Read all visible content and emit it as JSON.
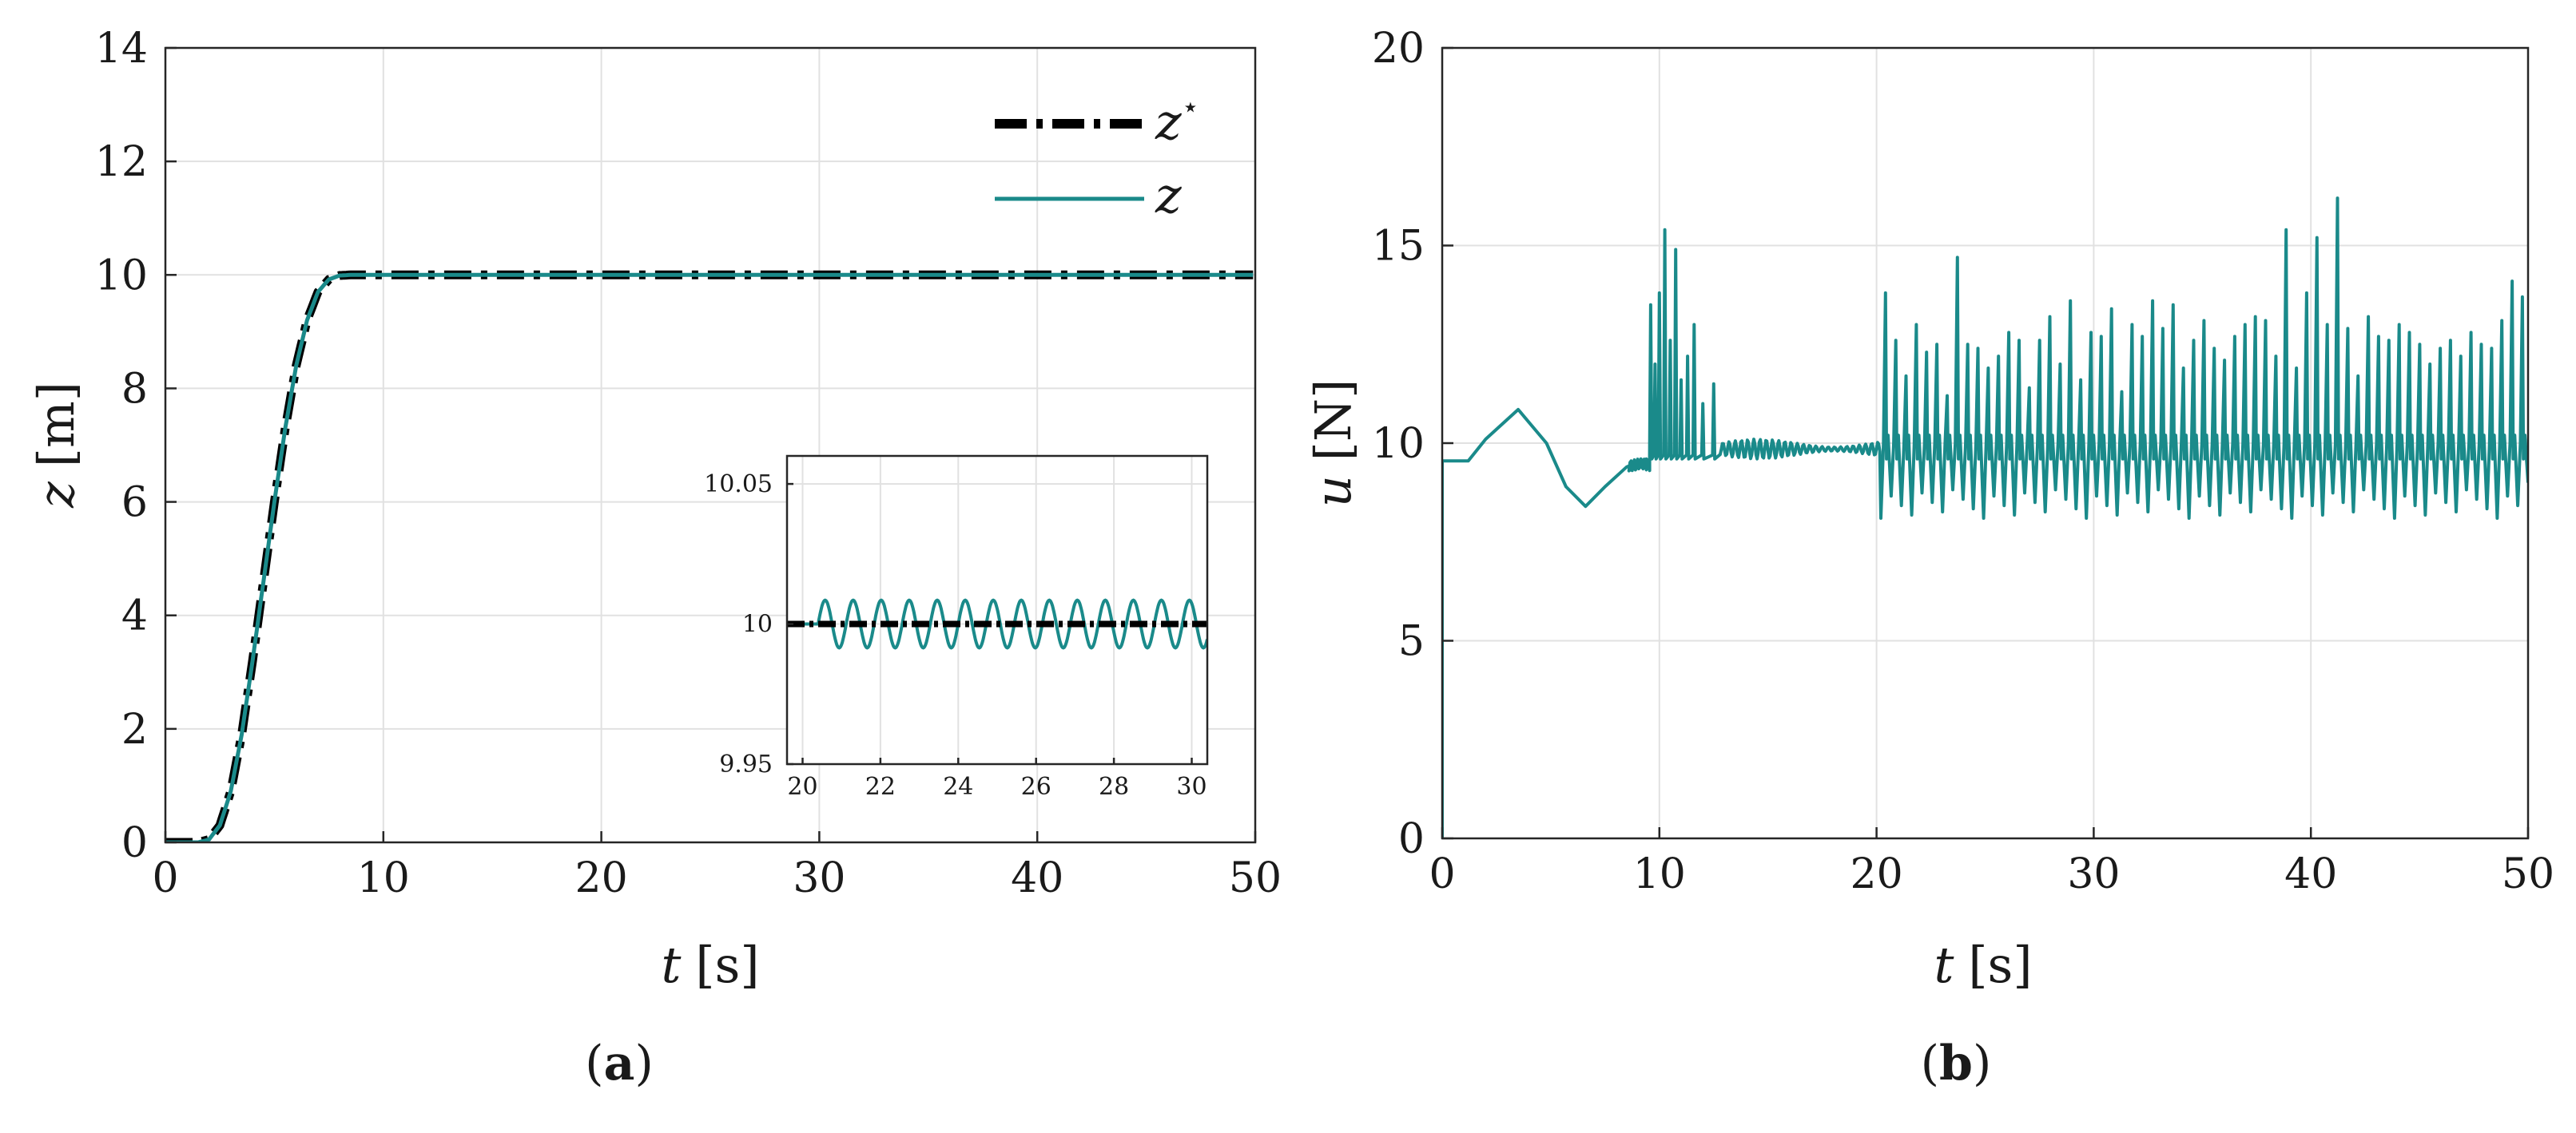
{
  "chart_data": [
    {
      "type": "line",
      "caption": "a",
      "xlabel_var": "t",
      "xlabel_unit": "[s]",
      "ylabel_var": "z",
      "ylabel_unit": "[m]",
      "xlim": [
        0,
        50
      ],
      "ylim": [
        0,
        14
      ],
      "xticks": [
        "0",
        "10",
        "20",
        "30",
        "40",
        "50"
      ],
      "yticks": [
        "0",
        "2",
        "4",
        "6",
        "8",
        "10",
        "12",
        "14"
      ],
      "grid": true,
      "legend_position": "top-right",
      "series": [
        {
          "name": "z",
          "legend_sup": "⋆",
          "style": "dash-dot",
          "color": "#000000",
          "x": [
            0,
            1.5,
            2,
            2.5,
            3,
            3.5,
            4,
            4.5,
            5,
            5.5,
            6,
            6.5,
            7,
            7.5,
            8,
            8.5,
            9,
            10,
            20,
            30,
            40,
            50
          ],
          "y": [
            0,
            0,
            0.05,
            0.3,
            0.9,
            1.9,
            3.2,
            4.6,
            6.0,
            7.3,
            8.4,
            9.2,
            9.7,
            9.92,
            9.99,
            10,
            10,
            10,
            10,
            10,
            10,
            10
          ]
        },
        {
          "name": "z",
          "legend_sup": "",
          "style": "solid",
          "color": "#1a8a8a",
          "x": [
            0,
            1.5,
            2,
            2.5,
            3,
            3.5,
            4,
            4.5,
            5,
            5.5,
            6,
            6.5,
            7,
            7.5,
            8,
            8.5,
            9,
            10,
            20,
            30,
            40,
            50
          ],
          "y": [
            0,
            0,
            0.05,
            0.3,
            0.9,
            1.9,
            3.2,
            4.6,
            6.0,
            7.3,
            8.4,
            9.2,
            9.7,
            9.92,
            9.99,
            10,
            10,
            10,
            10,
            10,
            10,
            10
          ]
        }
      ],
      "inset": {
        "xlim": [
          19.6,
          30.4
        ],
        "ylim": [
          9.95,
          10.06
        ],
        "xticks": [
          "20",
          "22",
          "24",
          "26",
          "28",
          "30"
        ],
        "yticks": [
          "9.95",
          "10",
          "10.05"
        ],
        "reference_value": 10,
        "oscillation_amplitude": 0.0085,
        "oscillation_period": 0.72,
        "oscillation_start": 20.4
      }
    },
    {
      "type": "line",
      "caption": "b",
      "xlabel_var": "t",
      "xlabel_unit": "[s]",
      "ylabel_var": "u",
      "ylabel_unit": "[N]",
      "xlim": [
        0,
        50
      ],
      "ylim": [
        0,
        20
      ],
      "xticks": [
        "0",
        "10",
        "20",
        "30",
        "40",
        "50"
      ],
      "yticks": [
        "0",
        "5",
        "10",
        "15",
        "20"
      ],
      "grid": true,
      "series": [
        {
          "name": "u",
          "color": "#1a8a8a",
          "segments": {
            "initial": {
              "t_start": 0,
              "t_hold": 1.2,
              "value": 9.55
            },
            "swing": [
              [
                1.2,
                9.55
              ],
              [
                2.0,
                10.1
              ],
              [
                3.5,
                10.85
              ],
              [
                4.8,
                10.0
              ],
              [
                5.7,
                8.9
              ],
              [
                6.6,
                8.4
              ],
              [
                7.5,
                8.9
              ],
              [
                8.5,
                9.4
              ],
              [
                9.4,
                9.6
              ]
            ],
            "spikes_early": [
              [
                9.6,
                13.5
              ],
              [
                9.8,
                12.0
              ],
              [
                10.0,
                13.8
              ],
              [
                10.25,
                15.4
              ],
              [
                10.5,
                12.6
              ],
              [
                10.75,
                14.9
              ],
              [
                11.0,
                11.6
              ],
              [
                11.3,
                12.2
              ],
              [
                11.6,
                13.0
              ],
              [
                12.0,
                11.0
              ],
              [
                12.5,
                11.5
              ]
            ],
            "calm": {
              "t_start": 12.8,
              "t_end": 20.2,
              "mean": 9.85,
              "amplitude": 0.25
            },
            "burst_peaks": [
              13.8,
              12.6,
              11.7,
              13.0,
              12.3,
              12.5,
              11.2,
              14.7,
              12.5,
              12.4,
              11.9,
              12.2,
              12.8,
              12.6,
              11.4,
              12.6,
              13.2,
              12.0,
              13.6,
              11.6,
              12.8,
              12.7,
              13.4,
              11.3,
              13.0,
              12.7,
              13.6,
              12.9,
              13.5,
              11.9,
              12.6,
              13.1,
              12.4,
              12.1,
              12.7,
              13.0,
              13.2,
              13.1,
              12.2,
              15.4,
              11.9,
              13.8,
              15.2,
              13.0,
              16.2,
              12.9,
              11.7,
              13.2,
              12.7,
              12.6,
              13.0,
              12.8,
              12.5,
              12.0,
              12.4,
              12.6,
              12.2,
              12.8,
              12.5,
              12.4,
              13.1,
              14.1,
              13.7
            ],
            "burst_troughs_range": [
              8.1,
              8.9
            ],
            "burst_start": 20.2,
            "burst_end": 50
          }
        }
      ]
    }
  ]
}
